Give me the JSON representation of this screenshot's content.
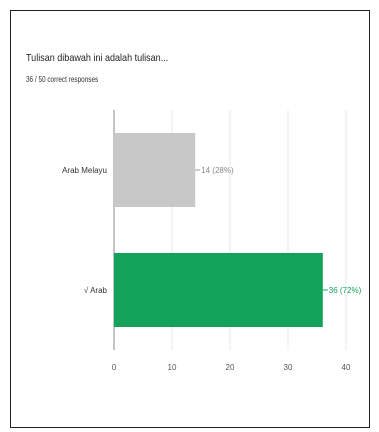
{
  "question": {
    "title": "Tulisan dibawah ini adalah tulisan...",
    "subtitle": "36 / 50 correct responses"
  },
  "colors": {
    "incorrect": "#c8c8c8",
    "correct": "#13a25a",
    "grid": "#e8e8e8",
    "axis": "#888888"
  },
  "chart_data": {
    "type": "bar",
    "orientation": "horizontal",
    "categories": [
      "Arab Melayu",
      "√ Arab"
    ],
    "values": [
      14,
      36
    ],
    "data_labels": [
      "14 (28%)",
      "36 (72%)"
    ],
    "correct": [
      false,
      true
    ],
    "xlim": [
      0,
      40
    ],
    "xticks": [
      0,
      10,
      20,
      30,
      40
    ],
    "grid": true
  }
}
